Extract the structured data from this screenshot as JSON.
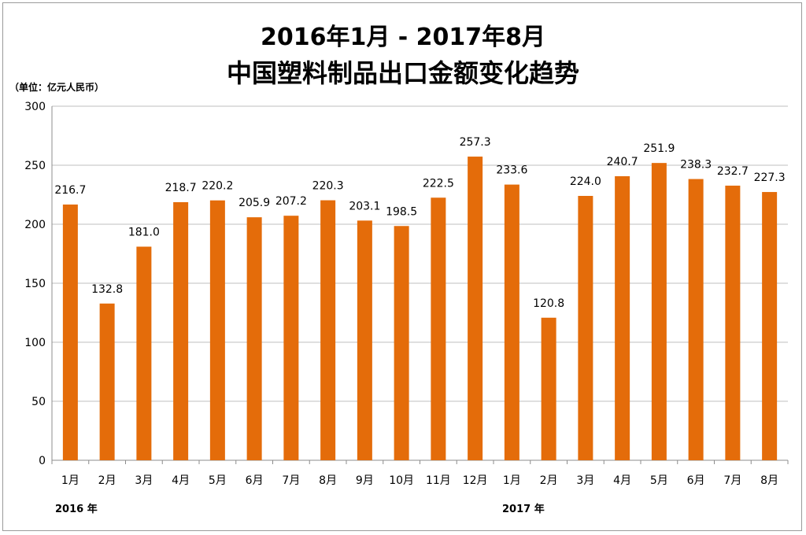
{
  "chart_data": {
    "type": "bar",
    "title_line1": "2016年1月 - 2017年8月",
    "title_line2": "中国塑料制品出口金额变化趋势",
    "unit_label": "（单位：亿元人民币）",
    "categories": [
      "1月",
      "2月",
      "3月",
      "4月",
      "5月",
      "6月",
      "7月",
      "8月",
      "9月",
      "10月",
      "11月",
      "12月",
      "1月",
      "2月",
      "3月",
      "4月",
      "5月",
      "6月",
      "7月",
      "8月"
    ],
    "values": [
      216.7,
      132.8,
      181.0,
      218.7,
      220.2,
      205.9,
      207.2,
      220.3,
      203.1,
      198.5,
      222.5,
      257.3,
      233.6,
      120.8,
      224.0,
      240.7,
      251.9,
      238.3,
      232.7,
      227.3
    ],
    "data_labels": [
      "216.7",
      "132.8",
      "181.0",
      "218.7",
      "220.2",
      "205.9",
      "207.2",
      "220.3",
      "203.1",
      "198.5",
      "222.5",
      "257.3",
      "233.6",
      "120.8",
      "224.0",
      "240.7",
      "251.9",
      "238.3",
      "232.7",
      "227.3"
    ],
    "year_groups": [
      "2016 年",
      "2017 年"
    ],
    "ylim": [
      0,
      300
    ],
    "yticks": [
      "0",
      "50",
      "100",
      "150",
      "200",
      "250",
      "300"
    ],
    "grid": true,
    "bar_color": "#E46C0A",
    "grid_color": "#BFBFBF"
  }
}
